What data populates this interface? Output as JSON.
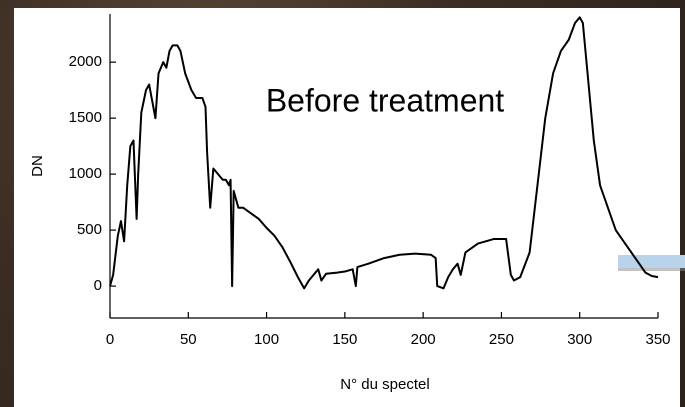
{
  "chart_data": {
    "type": "line",
    "annotation": "Before treatment",
    "x_label": "N° du spectel",
    "y_label": "DN",
    "xlim": [
      0,
      350
    ],
    "ylim": [
      -285,
      2430
    ],
    "xticks": [
      0,
      50,
      100,
      150,
      200,
      250,
      300,
      350
    ],
    "yticks": [
      0,
      500,
      1000,
      1500,
      2000
    ],
    "series": [
      {
        "name": "DN",
        "color": "#000000",
        "x": [
          0,
          2,
          5,
          7,
          9,
          11,
          13,
          15,
          17,
          18,
          20,
          23,
          25,
          27,
          29,
          31,
          34,
          36,
          38,
          40,
          43,
          45,
          48,
          52,
          55,
          59,
          61,
          62,
          64,
          66,
          69,
          72,
          74,
          76,
          77,
          78,
          79,
          82,
          85,
          90,
          95,
          100,
          105,
          110,
          115,
          120,
          124,
          127,
          130,
          133,
          135,
          138,
          145,
          150,
          155,
          157,
          158,
          165,
          175,
          185,
          195,
          205,
          208,
          209,
          213,
          216,
          219,
          222,
          224,
          227,
          235,
          245,
          253,
          256,
          258,
          262,
          268,
          273,
          278,
          283,
          288,
          293,
          297,
          300,
          302,
          305,
          309,
          313,
          318,
          323,
          328,
          333,
          338,
          342,
          346,
          350
        ],
        "values": [
          0,
          100,
          450,
          580,
          400,
          900,
          1250,
          1300,
          600,
          1000,
          1550,
          1750,
          1800,
          1650,
          1500,
          1900,
          2000,
          1950,
          2100,
          2150,
          2150,
          2100,
          1900,
          1750,
          1680,
          1680,
          1600,
          1200,
          700,
          1050,
          1000,
          950,
          950,
          900,
          950,
          0,
          850,
          700,
          700,
          650,
          600,
          520,
          450,
          350,
          220,
          80,
          -20,
          50,
          100,
          150,
          50,
          110,
          120,
          130,
          150,
          0,
          170,
          200,
          250,
          280,
          290,
          280,
          250,
          0,
          -20,
          80,
          150,
          200,
          100,
          300,
          380,
          420,
          420,
          100,
          50,
          80,
          300,
          900,
          1500,
          1900,
          2100,
          2200,
          2350,
          2400,
          2350,
          1900,
          1300,
          900,
          700,
          500,
          400,
          300,
          200,
          120,
          90,
          80
        ]
      }
    ]
  }
}
